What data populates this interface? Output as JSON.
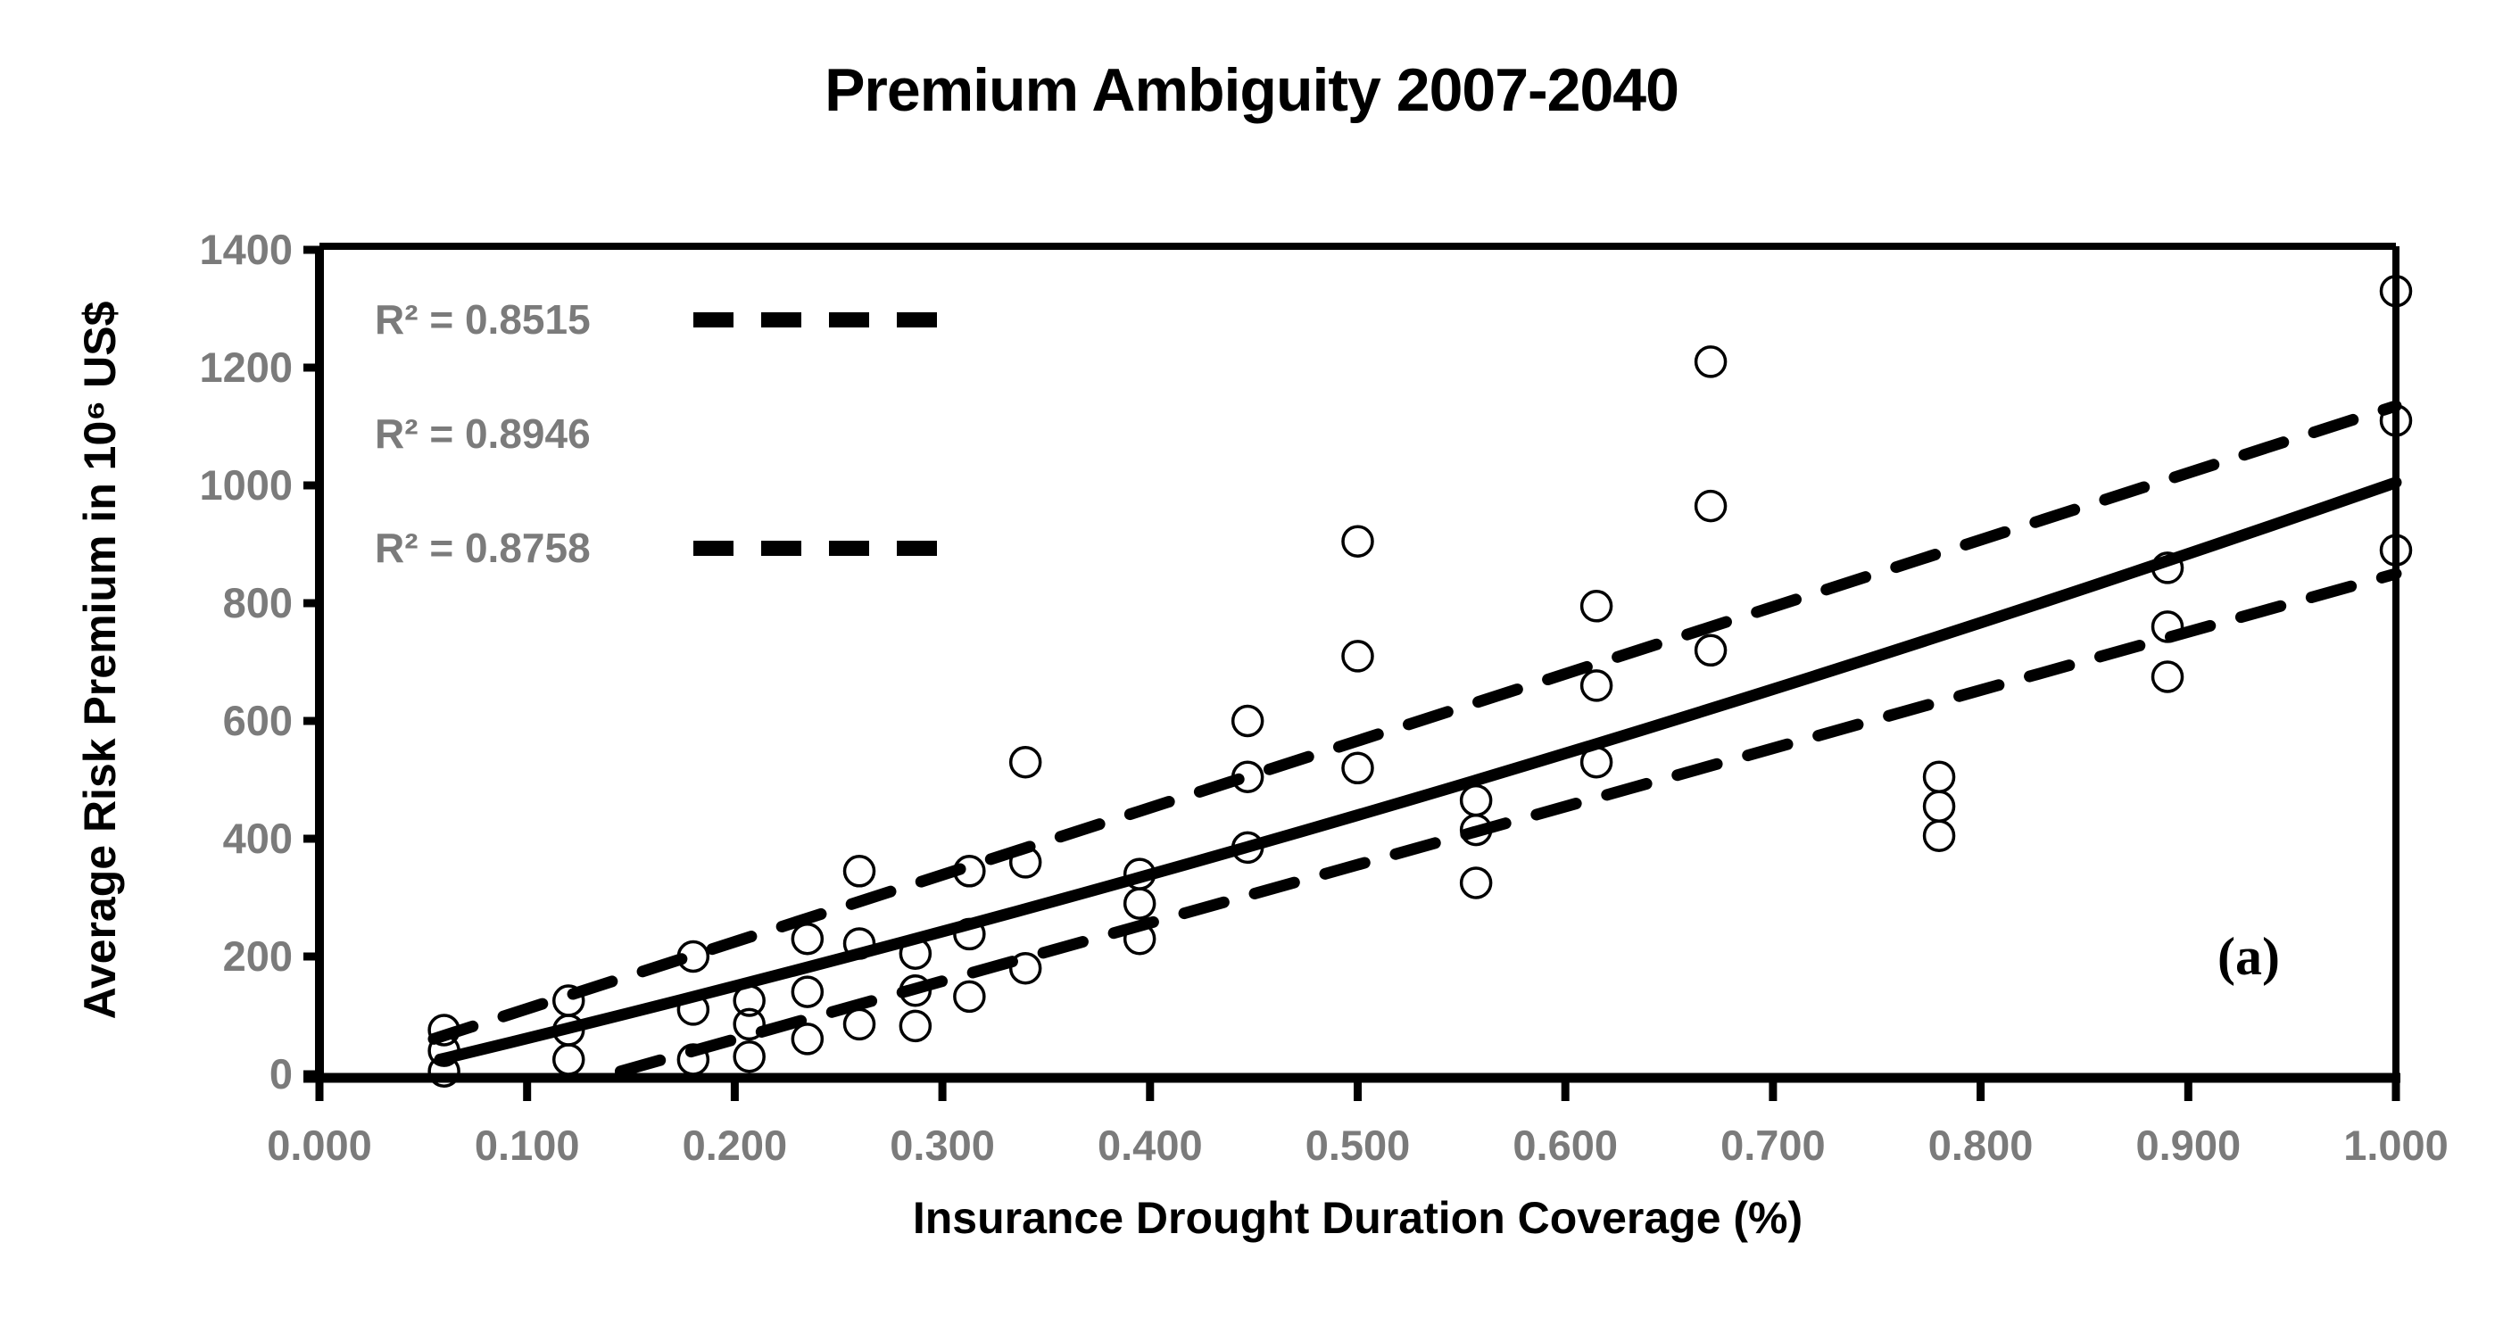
{
  "title": "Premium Ambiguity 2007-2040",
  "panel_label": "(a)",
  "legend": [
    {
      "label": "R² = 0.8515",
      "line": "dashed"
    },
    {
      "label": "R² = 0.8946",
      "line": "none"
    },
    {
      "label": "R² = 0.8758",
      "line": "dashed"
    }
  ],
  "colors": {
    "background": "#ffffff",
    "axis": "#000000",
    "marker": "#000000",
    "tick_label": "#7b7b7b",
    "legend_text": "#7b7b7b",
    "title_text": "#000000"
  },
  "chart_data": {
    "type": "scatter",
    "title": "Premium Ambiguity 2007-2040",
    "xlabel": "Insurance Drought Duration Coverage (%)",
    "ylabel": "Average Risk Premium in 10⁶ US$",
    "xlim": [
      0.0,
      1.0
    ],
    "ylim": [
      0,
      1400
    ],
    "grid": false,
    "legend_position": "top-left-inside",
    "x_tick_labels": [
      "0.000",
      "0.100",
      "0.200",
      "0.300",
      "0.400",
      "0.500",
      "0.600",
      "0.700",
      "0.800",
      "0.900",
      "1.000"
    ],
    "y_tick_labels": [
      "0",
      "200",
      "400",
      "600",
      "800",
      "1000",
      "1200",
      "1400"
    ],
    "points": [
      [
        0.06,
        75
      ],
      [
        0.06,
        40
      ],
      [
        0.06,
        5
      ],
      [
        0.12,
        125
      ],
      [
        0.12,
        75
      ],
      [
        0.12,
        25
      ],
      [
        0.18,
        200
      ],
      [
        0.18,
        110
      ],
      [
        0.18,
        25
      ],
      [
        0.207,
        125
      ],
      [
        0.207,
        85
      ],
      [
        0.207,
        30
      ],
      [
        0.235,
        230
      ],
      [
        0.235,
        140
      ],
      [
        0.235,
        60
      ],
      [
        0.26,
        345
      ],
      [
        0.26,
        222
      ],
      [
        0.26,
        85
      ],
      [
        0.287,
        205
      ],
      [
        0.287,
        142
      ],
      [
        0.287,
        82
      ],
      [
        0.313,
        345
      ],
      [
        0.313,
        238
      ],
      [
        0.313,
        132
      ],
      [
        0.34,
        530
      ],
      [
        0.34,
        360
      ],
      [
        0.34,
        180
      ],
      [
        0.395,
        340
      ],
      [
        0.395,
        290
      ],
      [
        0.395,
        230
      ],
      [
        0.447,
        600
      ],
      [
        0.447,
        505
      ],
      [
        0.447,
        385
      ],
      [
        0.5,
        905
      ],
      [
        0.5,
        710
      ],
      [
        0.5,
        520
      ],
      [
        0.557,
        465
      ],
      [
        0.557,
        415
      ],
      [
        0.557,
        325
      ],
      [
        0.615,
        795
      ],
      [
        0.615,
        660
      ],
      [
        0.615,
        530
      ],
      [
        0.67,
        1210
      ],
      [
        0.67,
        965
      ],
      [
        0.67,
        720
      ],
      [
        0.78,
        505
      ],
      [
        0.78,
        455
      ],
      [
        0.78,
        405
      ],
      [
        0.89,
        860
      ],
      [
        0.89,
        760
      ],
      [
        0.89,
        675
      ],
      [
        1.0,
        1330
      ],
      [
        1.0,
        1110
      ],
      [
        1.0,
        890
      ]
    ],
    "fit_lines": [
      {
        "name": "upper-confidence-dashed",
        "r2": "0.8515",
        "style": "dashed",
        "x": [
          0.055,
          1.0
        ],
        "y": [
          60,
          1135
        ],
        "bow": 0
      },
      {
        "name": "trend-solid",
        "r2": "0.8946",
        "style": "solid",
        "x": [
          0.058,
          1.0
        ],
        "y": [
          25,
          1005
        ],
        "bow": -45
      },
      {
        "name": "lower-confidence-dashed",
        "r2": "0.8758",
        "style": "dashed",
        "x": [
          0.145,
          1.0
        ],
        "y": [
          5,
          850
        ],
        "bow": 0
      }
    ]
  }
}
